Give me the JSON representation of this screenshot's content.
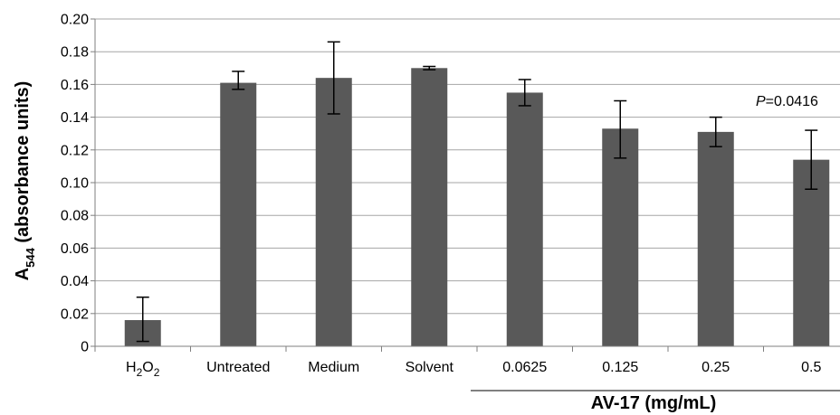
{
  "chart_data": {
    "type": "bar",
    "title": "",
    "xlabel": "",
    "ylabel": {
      "base": "A",
      "sub": "544",
      "rest": " (absorbance units)"
    },
    "categories": [
      {
        "main": "H",
        "sub": "2",
        "main2": "O",
        "sub2": "2"
      },
      {
        "main": "Untreated"
      },
      {
        "main": "Medium"
      },
      {
        "main": "Solvent"
      },
      {
        "main": "0.0625"
      },
      {
        "main": "0.125"
      },
      {
        "main": "0.25"
      },
      {
        "main": "0.5"
      }
    ],
    "values": [
      0.016,
      0.161,
      0.164,
      0.17,
      0.155,
      0.133,
      0.131,
      0.114
    ],
    "error_low": [
      0.003,
      0.157,
      0.142,
      0.169,
      0.147,
      0.115,
      0.122,
      0.096
    ],
    "error_high": [
      0.03,
      0.168,
      0.186,
      0.171,
      0.163,
      0.15,
      0.14,
      0.132
    ],
    "ylim": [
      0,
      0.2
    ],
    "yticks": [
      "0",
      "0.02",
      "0.04",
      "0.06",
      "0.08",
      "0.10",
      "0.12",
      "0.14",
      "0.16",
      "0.18",
      "0.20"
    ],
    "grid": true,
    "group_label": "AV-17 (mg/mL)",
    "annotation": {
      "italic": "P",
      "rest": "=0.0416"
    },
    "colors": {
      "bar": "#595959",
      "grid": "#a6a6a6",
      "axis": "#7f7f7f",
      "error": "#000000"
    }
  }
}
